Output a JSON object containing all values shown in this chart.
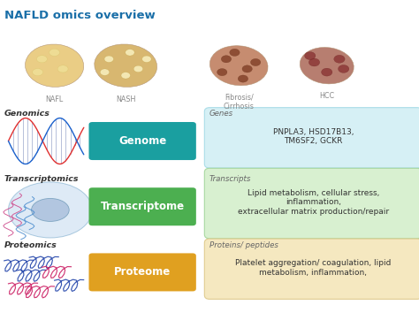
{
  "title": "NAFLD omics overview",
  "title_color": "#1a6fa8",
  "title_fontsize": 9.5,
  "bg_color": "#ffffff",
  "liver_labels": [
    "NAFL",
    "NASH",
    "Fibrosis/\nCirrhosis",
    "HCC"
  ],
  "liver_label_color": "#888888",
  "omics_rows": [
    {
      "label": "Genomics",
      "box_text": "Genome",
      "box_color": "#1a9fa0",
      "box_text_color": "#ffffff",
      "category_label": "Genes",
      "info_text": "PNPLA3, HSD17B13,\nTM6SF2, GCKR",
      "info_box_color": "#d6f0f5",
      "info_box_edge": "#aadde8"
    },
    {
      "label": "Transcriptomics",
      "box_text": "Transcriptome",
      "box_color": "#4caf50",
      "box_text_color": "#ffffff",
      "category_label": "Transcripts",
      "info_text": "Lipid metabolism, cellular stress,\ninflammation,\nextracellular matrix production/repair",
      "info_box_color": "#d8f0d0",
      "info_box_edge": "#a8d8a0"
    },
    {
      "label": "Proteomics",
      "box_text": "Proteome",
      "box_color": "#e0a020",
      "box_text_color": "#ffffff",
      "category_label": "Proteins/ peptides",
      "info_text": "Platelet aggregation/ coagulation, lipid\nmetabolism, inflammation,",
      "info_box_color": "#f5e8c0",
      "info_box_edge": "#e0cc90"
    }
  ]
}
